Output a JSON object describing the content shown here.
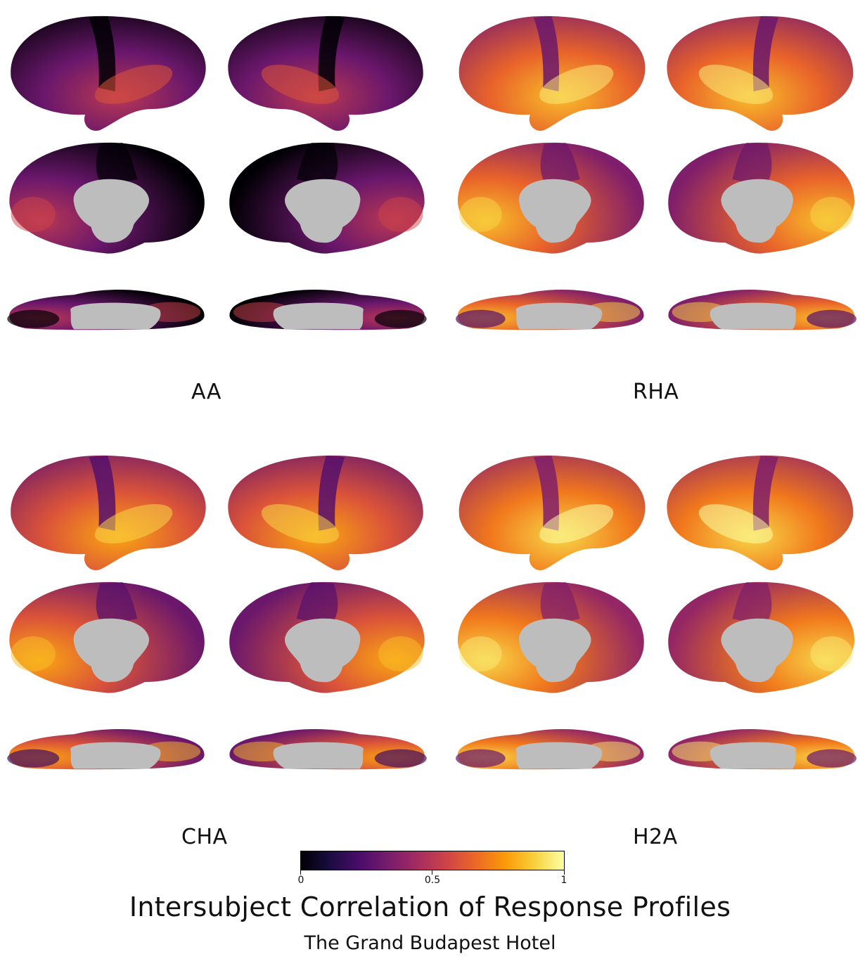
{
  "panels": [
    {
      "label": "AA",
      "level": 0.25
    },
    {
      "label": "RHA",
      "level": 0.6
    },
    {
      "label": "CHA",
      "level": 0.55
    },
    {
      "label": "H2A",
      "level": 0.65
    }
  ],
  "colorbar": {
    "ticks": [
      "0",
      "0.5",
      "1"
    ],
    "tick_values": [
      0,
      0.5,
      1
    ],
    "colors": [
      "#000004",
      "#1b0c41",
      "#4a0c6b",
      "#781c6d",
      "#a52c60",
      "#cf4446",
      "#ed6925",
      "#fb9b06",
      "#f7d13d",
      "#fcffa4"
    ]
  },
  "title": "Intersubject Correlation of Response Profiles",
  "subtitle": "The Grand Budapest Hotel",
  "colors": {
    "medial_wall": "#bdbdbd",
    "background": "#ffffff"
  }
}
